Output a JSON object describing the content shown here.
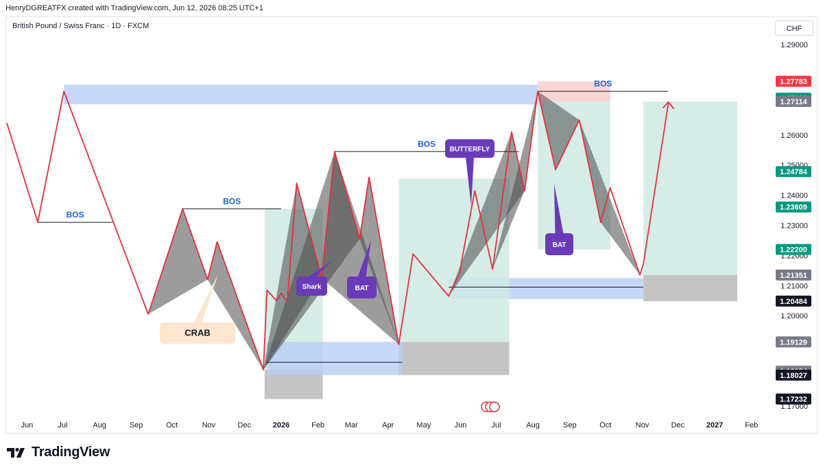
{
  "header": {
    "credit": "HenryDGREATFX created with TradingView.com, Jun 12, 2026 08:25 UTC+1",
    "symbol": "British Pound / Swiss Franc · 1D · FXCM",
    "currency": "CHF"
  },
  "brand": {
    "name": "TradingView",
    "logo_icon": "tradingview-logo-icon"
  },
  "colors": {
    "line": "#e2303b",
    "pattern_fill": "#4a4a4a",
    "bos_text": "#1e5fd6",
    "blue_zone": "#b9cdf6",
    "green_zone": "#cfe9e3",
    "red_zone": "#f8c9cd",
    "gray_zone": "#b5b5b5",
    "label_purple": "#6a3bb8",
    "crab_bg": "#fde6cf",
    "price_red": "#f23645",
    "price_green": "#089981",
    "price_gray": "#787b86",
    "price_black": "#131722"
  },
  "chart_data": {
    "type": "line",
    "title": "British Pound / Swiss Franc · 1D · FXCM",
    "x_range": [
      "2025-05-15",
      "2027-02-15"
    ],
    "y_range": [
      1.167,
      1.298
    ],
    "grid": false,
    "x_ticks": [
      {
        "label": "Jun",
        "date": "2025-06-01"
      },
      {
        "label": "Jul",
        "date": "2025-07-01"
      },
      {
        "label": "Aug",
        "date": "2025-08-01"
      },
      {
        "label": "Sep",
        "date": "2025-09-01"
      },
      {
        "label": "Oct",
        "date": "2025-10-01"
      },
      {
        "label": "Nov",
        "date": "2025-11-01"
      },
      {
        "label": "Dec",
        "date": "2025-12-01"
      },
      {
        "label": "2026",
        "date": "2026-01-01",
        "bold": true
      },
      {
        "label": "Feb",
        "date": "2026-02-01"
      },
      {
        "label": "Mar",
        "date": "2026-03-01"
      },
      {
        "label": "Apr",
        "date": "2026-04-01"
      },
      {
        "label": "May",
        "date": "2026-05-01"
      },
      {
        "label": "Jun",
        "date": "2026-06-01"
      },
      {
        "label": "Jul",
        "date": "2026-07-01"
      },
      {
        "label": "Aug",
        "date": "2026-08-01"
      },
      {
        "label": "Sep",
        "date": "2026-09-01"
      },
      {
        "label": "Oct",
        "date": "2026-10-01"
      },
      {
        "label": "Nov",
        "date": "2026-11-01"
      },
      {
        "label": "Dec",
        "date": "2026-12-01"
      },
      {
        "label": "2027",
        "date": "2027-01-01",
        "bold": true
      },
      {
        "label": "Feb",
        "date": "2027-02-01"
      }
    ],
    "y_ticks": [
      {
        "label": "1.29000",
        "value": 1.29
      },
      {
        "label": "1.26000",
        "value": 1.26
      },
      {
        "label": "1.25000",
        "value": 1.25
      },
      {
        "label": "1.24000",
        "value": 1.24
      },
      {
        "label": "1.23000",
        "value": 1.23
      },
      {
        "label": "1.22000",
        "value": 1.22
      },
      {
        "label": "1.21000",
        "value": 1.21
      },
      {
        "label": "1.20000",
        "value": 1.2
      },
      {
        "label": "1.17000",
        "value": 1.17
      }
    ],
    "price_tags": [
      {
        "label": "1.27783",
        "value": 1.27783,
        "color": "price_red"
      },
      {
        "label": "1.27222",
        "value": 1.27222,
        "color": "price_green"
      },
      {
        "label": "1.27114",
        "value": 1.27114,
        "color": "price_gray"
      },
      {
        "label": "1.24784",
        "value": 1.24784,
        "color": "price_green"
      },
      {
        "label": "1.23609",
        "value": 1.23609,
        "color": "price_green"
      },
      {
        "label": "1.22200",
        "value": 1.222,
        "color": "price_green"
      },
      {
        "label": "1.21351",
        "value": 1.21351,
        "color": "price_gray"
      },
      {
        "label": "1.20484",
        "value": 1.20484,
        "color": "price_black"
      },
      {
        "label": "1.19129",
        "value": 1.19129,
        "color": "price_gray"
      },
      {
        "label": "1.18154",
        "value": 1.18154,
        "color": "price_gray"
      },
      {
        "label": "1.18027",
        "value": 1.18027,
        "color": "price_black"
      },
      {
        "label": "1.17232",
        "value": 1.17232,
        "color": "price_black"
      }
    ],
    "series": [
      {
        "points": [
          [
            "2025-05-15",
            1.264
          ],
          [
            "2025-06-10",
            1.231
          ],
          [
            "2025-07-02",
            1.2745
          ],
          [
            "2025-09-11",
            1.2005
          ],
          [
            "2025-10-10",
            1.2355
          ],
          [
            "2025-10-31",
            1.212
          ],
          [
            "2025-11-08",
            1.2245
          ],
          [
            "2025-12-17",
            1.182
          ],
          [
            "2025-12-20",
            1.2085
          ],
          [
            "2025-12-28",
            1.205
          ],
          [
            "2026-01-01",
            1.2075
          ],
          [
            "2026-01-06",
            1.2045
          ],
          [
            "2026-01-14",
            1.244
          ],
          [
            "2026-02-04",
            1.2125
          ],
          [
            "2026-02-15",
            1.2545
          ],
          [
            "2026-03-08",
            1.2255
          ],
          [
            "2026-03-16",
            1.246
          ],
          [
            "2026-04-10",
            1.1905
          ],
          [
            "2026-04-22",
            1.2205
          ],
          [
            "2026-05-22",
            1.2065
          ],
          [
            "2026-05-31",
            1.214
          ],
          [
            "2026-06-13",
            1.2415
          ],
          [
            "2026-06-28",
            1.2155
          ],
          [
            "2026-07-14",
            1.261
          ],
          [
            "2026-07-25",
            1.2415
          ],
          [
            "2026-08-05",
            1.2745
          ],
          [
            "2026-08-20",
            1.2485
          ],
          [
            "2026-09-09",
            1.265
          ],
          [
            "2026-09-27",
            1.231
          ],
          [
            "2026-10-05",
            1.2425
          ],
          [
            "2026-10-30",
            1.2135
          ],
          [
            "2026-11-02",
            1.2173
          ],
          [
            "2026-11-23",
            1.2705
          ]
        ]
      }
    ],
    "harmonic_patterns": [
      {
        "name": "CRAB",
        "points": [
          [
            "2025-09-11",
            1.2005
          ],
          [
            "2025-10-10",
            1.2355
          ],
          [
            "2025-10-31",
            1.212
          ],
          [
            "2025-11-08",
            1.2245
          ],
          [
            "2025-12-17",
            1.182
          ]
        ]
      },
      {
        "name": "Shark",
        "points": [
          [
            "2025-12-17",
            1.182
          ],
          [
            "2026-01-14",
            1.244
          ],
          [
            "2026-02-04",
            1.2125
          ],
          [
            "2026-02-15",
            1.2545
          ],
          [
            "2026-04-10",
            1.1905
          ]
        ]
      },
      {
        "name": "BAT",
        "points": [
          [
            "2025-12-17",
            1.182
          ],
          [
            "2026-02-15",
            1.2545
          ],
          [
            "2026-03-08",
            1.2255
          ],
          [
            "2026-03-16",
            1.246
          ],
          [
            "2026-04-10",
            1.1905
          ]
        ]
      },
      {
        "name": "BUTTERFLY",
        "points": [
          [
            "2026-05-22",
            1.2065
          ],
          [
            "2026-07-14",
            1.261
          ],
          [
            "2026-07-25",
            1.2415
          ],
          [
            "2026-08-05",
            1.2745
          ],
          [
            "2026-06-28",
            1.2155
          ]
        ]
      },
      {
        "name": "BAT",
        "points": [
          [
            "2026-08-05",
            1.2745
          ],
          [
            "2026-08-20",
            1.2485
          ],
          [
            "2026-09-09",
            1.265
          ],
          [
            "2026-09-27",
            1.231
          ],
          [
            "2026-10-30",
            1.2135
          ]
        ]
      }
    ],
    "bos_lines": [
      {
        "label": "BOS",
        "from": "2025-06-10",
        "to": "2025-08-12",
        "value": 1.231
      },
      {
        "label": "BOS",
        "from": "2025-10-10",
        "to": "2026-01-01",
        "value": 1.2355
      },
      {
        "label": "BOS",
        "from": "2026-02-15",
        "to": "2026-07-20",
        "value": 1.2545
      },
      {
        "label": "BOS",
        "from": "2026-08-05",
        "to": "2026-11-23",
        "value": 1.2745
      }
    ],
    "zones": [
      {
        "kind": "blue_zone",
        "from": "2025-07-02",
        "to": "2026-08-05",
        "top": 1.2767,
        "bottom": 1.2702
      },
      {
        "kind": "red_zone",
        "from": "2026-08-05",
        "to": "2026-10-05",
        "top": 1.2778,
        "bottom": 1.2711
      },
      {
        "kind": "green_zone",
        "from": "2026-08-05",
        "to": "2026-10-05",
        "top": 1.2711,
        "bottom": 1.222
      },
      {
        "kind": "green_zone",
        "from": "2026-11-02",
        "to": "2027-01-20",
        "top": 1.2711,
        "bottom": 1.2135
      },
      {
        "kind": "gray_zone",
        "from": "2026-11-02",
        "to": "2027-01-20",
        "top": 1.2135,
        "bottom": 1.2048
      },
      {
        "kind": "blue_zone",
        "from": "2026-05-22",
        "to": "2026-11-02",
        "top": 1.2125,
        "bottom": 1.2055
      },
      {
        "kind": "green_zone",
        "from": "2025-12-18",
        "to": "2026-02-05",
        "top": 1.2355,
        "bottom": 1.182
      },
      {
        "kind": "gray_zone",
        "from": "2025-12-18",
        "to": "2026-02-05",
        "top": 1.182,
        "bottom": 1.1723
      },
      {
        "kind": "green_zone",
        "from": "2026-04-10",
        "to": "2026-07-12",
        "top": 1.2455,
        "bottom": 1.1913
      },
      {
        "kind": "gray_zone",
        "from": "2026-04-10",
        "to": "2026-07-12",
        "top": 1.1913,
        "bottom": 1.1803
      },
      {
        "kind": "blue_zone",
        "from": "2025-12-20",
        "to": "2026-04-13",
        "top": 1.1913,
        "bottom": 1.1803
      }
    ],
    "labels": [
      {
        "text": "CRAB",
        "style": "crab"
      },
      {
        "text": "Shark",
        "style": "purple"
      },
      {
        "text": "BAT",
        "style": "purple"
      },
      {
        "text": "BUTTERFLY",
        "style": "purple"
      },
      {
        "text": "BAT",
        "style": "purple"
      }
    ],
    "target_arrow": {
      "from": [
        "2026-11-02",
        1.2173
      ],
      "to": [
        "2026-11-23",
        1.2705
      ]
    }
  }
}
